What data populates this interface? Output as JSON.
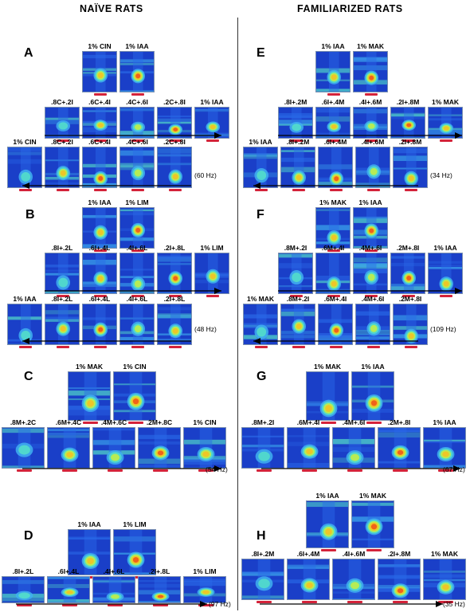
{
  "headers": {
    "left": "NAÏVE RATS",
    "right": "FAMILIARIZED RATS"
  },
  "colors": {
    "bg_blue": "#1a3fc8",
    "red_bar": "#d4233a"
  },
  "panels": [
    {
      "letter": "A",
      "top_labels": [
        "1% CIN",
        "1% IAA"
      ],
      "row1": [
        ".8C+.2I",
        ".6C+.4I",
        ".4C+.6I",
        ".2C+.8I",
        "1% IAA"
      ],
      "row2": [
        "1% CIN",
        ".8C+.2I",
        ".6C+.4I",
        ".4C+.6I",
        ".2C+.8I"
      ],
      "hz": "(60 Hz)"
    },
    {
      "letter": "B",
      "top_labels": [
        "1% IAA",
        "1% LIM"
      ],
      "row1": [
        ".8I+.2L",
        ".6I+.4L",
        ".4I+.6L",
        ".2I+.8L",
        "1% LIM"
      ],
      "row2": [
        "1% IAA",
        ".8I+.2L",
        ".6I+.4L",
        ".4I+.6L",
        ".2I+.8L"
      ],
      "hz": "(48 Hz)"
    },
    {
      "letter": "C",
      "top_labels": [
        "1% MAK",
        "1% CIN"
      ],
      "row1": [
        ".8M+.2C",
        ".6M+.4C",
        ".4M+.6C",
        ".2M+.8C",
        "1% CIN"
      ],
      "hz": "(54 Hz)"
    },
    {
      "letter": "D",
      "top_labels": [
        "1% IAA",
        "1% LIM"
      ],
      "row1": [
        ".8I+.2L",
        ".6I+.4L",
        ".4I+.6L",
        ".2I+.8L",
        "1% LIM"
      ],
      "hz": "(97 Hz)"
    },
    {
      "letter": "E",
      "top_labels": [
        "1% IAA",
        "1% MAK"
      ],
      "row1": [
        ".8I+.2M",
        ".6I+.4M",
        ".4I+.6M",
        ".2I+.8M",
        "1% MAK"
      ],
      "row2": [
        "1% IAA",
        ".8I+.2M",
        ".6I+.4M",
        ".4I+.6M",
        ".2I+.8M"
      ],
      "hz": "(34 Hz)"
    },
    {
      "letter": "F",
      "top_labels": [
        "1% MAK",
        "1% IAA"
      ],
      "row1": [
        ".8M+.2I",
        ".6M+.4I",
        ".4M+.6I",
        ".2M+.8I",
        "1% IAA"
      ],
      "row2": [
        "1% MAK",
        ".8M+.2I",
        ".6M+.4I",
        ".4M+.6I",
        ".2M+.8I"
      ],
      "hz": "(109 Hz)"
    },
    {
      "letter": "G",
      "top_labels": [
        "1% MAK",
        "1% IAA"
      ],
      "row1": [
        ".8M+.2I",
        ".6M+.4I",
        ".4M+.6I",
        ".2M+.8I",
        "1% IAA"
      ],
      "hz": "(67 Hz)"
    },
    {
      "letter": "H",
      "top_labels": [
        "1% IAA",
        "1% MAK"
      ],
      "row1": [
        ".8I+.2M",
        ".6I+.4M",
        ".4I+.6M",
        ".2I+.8M",
        "1% MAK"
      ],
      "hz": "(35 Hz)"
    }
  ]
}
